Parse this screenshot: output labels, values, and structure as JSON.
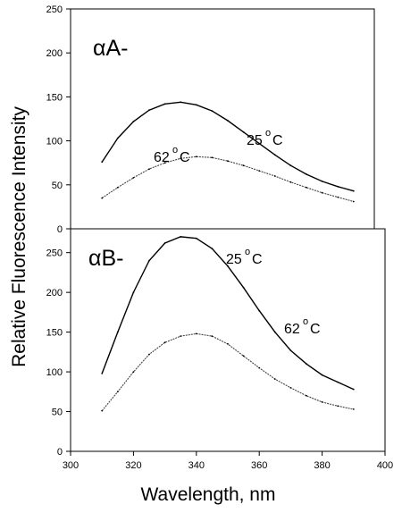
{
  "xlabel": "Wavelength, nm",
  "ylabel": "Relative Fluorescence Intensity",
  "chart_data": [
    {
      "type": "line",
      "panel_label": "αA-",
      "xlim": [
        300,
        400
      ],
      "ylim": [
        0,
        250
      ],
      "yticks": [
        0,
        50,
        100,
        150,
        200,
        250
      ],
      "x": [
        310,
        315,
        320,
        325,
        330,
        335,
        340,
        345,
        350,
        355,
        360,
        365,
        370,
        375,
        380,
        385,
        390
      ],
      "series": [
        {
          "name": "25 °C",
          "label_text": "25",
          "values": [
            76,
            103,
            122,
            135,
            142,
            144,
            141,
            134,
            123,
            110,
            97,
            84,
            72,
            62,
            54,
            48,
            43
          ]
        },
        {
          "name": "62 °C",
          "label_text": "62",
          "values": [
            35,
            47,
            58,
            68,
            75,
            80,
            82,
            81,
            77,
            72,
            66,
            60,
            53,
            47,
            41,
            36,
            31
          ]
        }
      ],
      "grid": false
    },
    {
      "type": "line",
      "panel_label": "αB-",
      "xlim": [
        300,
        400
      ],
      "ylim": [
        0,
        280
      ],
      "yticks": [
        0,
        50,
        100,
        150,
        200,
        250
      ],
      "xticks": [
        300,
        320,
        340,
        360,
        380,
        400
      ],
      "x": [
        310,
        315,
        320,
        325,
        330,
        335,
        340,
        345,
        350,
        355,
        360,
        365,
        370,
        375,
        380,
        385,
        390
      ],
      "series": [
        {
          "name": "25 °C",
          "label_text": "25",
          "values": [
            98,
            150,
            200,
            240,
            262,
            270,
            268,
            255,
            233,
            206,
            177,
            150,
            127,
            110,
            96,
            87,
            78
          ]
        },
        {
          "name": "62 °C",
          "label_text": "62",
          "values": [
            51,
            75,
            100,
            122,
            137,
            145,
            148,
            145,
            135,
            120,
            105,
            91,
            80,
            70,
            62,
            57,
            53
          ]
        }
      ],
      "grid": false
    }
  ],
  "degree_symbol": "o",
  "temp_unit": "C"
}
